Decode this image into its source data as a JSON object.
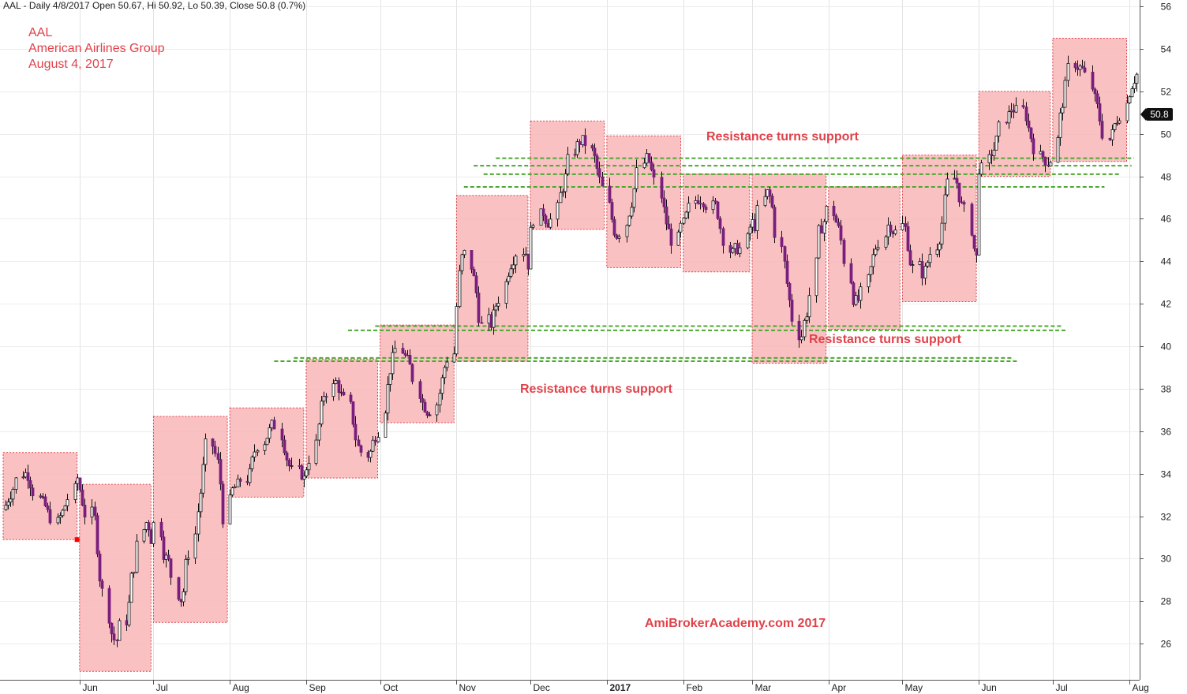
{
  "header": {
    "summary": "AAL - Daily 4/8/2017 Open 50.67, Hi 50.92, Lo 50.39, Close 50.8 (0.7%)"
  },
  "title": {
    "ticker": "AAL",
    "company": "American Airlines Group",
    "date": "August 4, 2017"
  },
  "annotations": [
    "Resistance turns support",
    "Resistance turns support",
    "Resistance turns support"
  ],
  "watermark": "AmiBrokerAcademy.com  2017",
  "close_badge": "50.8",
  "colors": {
    "box_fill": "#f9b6b8",
    "box_border": "#e0424a",
    "support_line": "#4aa82e",
    "bear_candle": "#7a1f7d",
    "bull_candle": "#ffffff",
    "text_accent": "#e0424a"
  },
  "chart_data": {
    "type": "candlestick",
    "y_ticks": [
      26,
      28,
      30,
      32,
      34,
      36,
      38,
      40,
      42,
      44,
      46,
      48,
      50,
      52,
      54,
      56
    ],
    "ylim": [
      24.3,
      56.3
    ],
    "x_labels": [
      "Jun",
      "Jul",
      "Aug",
      "Sep",
      "Oct",
      "Nov",
      "Dec",
      "2017",
      "Feb",
      "Mar",
      "Apr",
      "May",
      "Jun",
      "Jul",
      "Aug"
    ],
    "x_range": [
      "2016-05-01",
      "2017-08-04"
    ],
    "month_starts": [
      "2016-06-01",
      "2016-07-01",
      "2016-08-01",
      "2016-09-01",
      "2016-10-01",
      "2016-11-01",
      "2016-12-01",
      "2017-01-01",
      "2017-02-01",
      "2017-03-01",
      "2017-04-01",
      "2017-05-01",
      "2017-06-01",
      "2017-07-01",
      "2017-08-01"
    ],
    "monthly_range_boxes": [
      {
        "month": "2016-05",
        "low": 30.9,
        "high": 35.0
      },
      {
        "month": "2016-06",
        "low": 24.7,
        "high": 33.5
      },
      {
        "month": "2016-07",
        "low": 27.0,
        "high": 36.7
      },
      {
        "month": "2016-08",
        "low": 32.9,
        "high": 37.1
      },
      {
        "month": "2016-09",
        "low": 33.8,
        "high": 39.4
      },
      {
        "month": "2016-10",
        "low": 36.4,
        "high": 41.0
      },
      {
        "month": "2016-11",
        "low": 39.3,
        "high": 47.1
      },
      {
        "month": "2016-12",
        "low": 45.5,
        "high": 50.6
      },
      {
        "month": "2017-01",
        "low": 43.7,
        "high": 49.9
      },
      {
        "month": "2017-02",
        "low": 43.5,
        "high": 48.1
      },
      {
        "month": "2017-03",
        "low": 39.2,
        "high": 48.1
      },
      {
        "month": "2017-04",
        "low": 40.8,
        "high": 47.5
      },
      {
        "month": "2017-05",
        "low": 42.1,
        "high": 49.0
      },
      {
        "month": "2017-06",
        "low": 48.0,
        "high": 52.0
      },
      {
        "month": "2017-07",
        "low": 48.7,
        "high": 54.5
      }
    ],
    "support_lines": [
      {
        "y": 39.3,
        "from": "2016-08-19",
        "to": "2017-06-17"
      },
      {
        "y": 39.45,
        "from": "2016-08-27",
        "to": "2017-06-15"
      },
      {
        "y": 40.75,
        "from": "2016-09-18",
        "to": "2017-07-07"
      },
      {
        "y": 40.95,
        "from": "2016-09-29",
        "to": "2017-07-05"
      },
      {
        "y": 47.5,
        "from": "2016-11-04",
        "to": "2017-07-22"
      },
      {
        "y": 48.1,
        "from": "2016-11-12",
        "to": "2017-07-28"
      },
      {
        "y": 48.5,
        "from": "2016-11-08",
        "to": "2017-08-02"
      },
      {
        "y": 48.85,
        "from": "2016-11-17",
        "to": "2017-08-03"
      }
    ],
    "marker": {
      "date": "2016-05-31",
      "y": 30.9
    },
    "last_close": 50.8
  }
}
